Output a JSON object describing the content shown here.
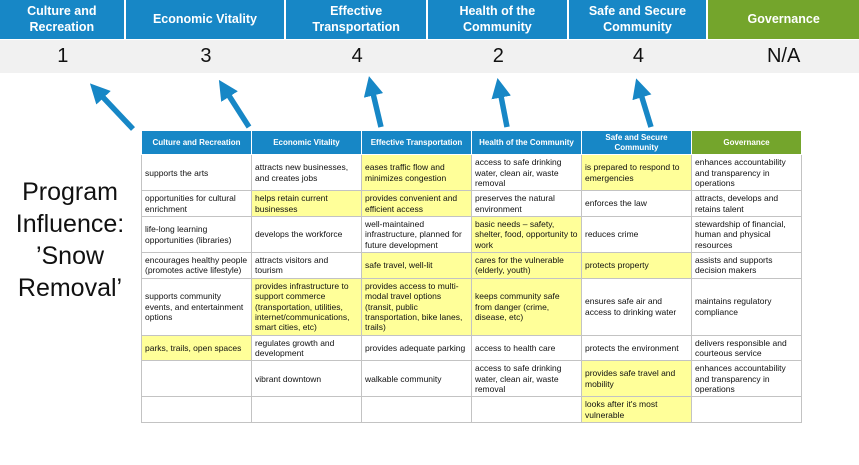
{
  "program_title": "Program Influence: ’Snow Removal’",
  "colors": {
    "header_blue": "#1787c6",
    "governance_green": "#74a52c",
    "highlight_yellow": "#ffff99",
    "score_band_bg": "#f1f1f1",
    "arrow_blue": "#1787c6"
  },
  "scoreboard": {
    "columns": [
      {
        "label": "Culture and Recreation",
        "score": "1"
      },
      {
        "label": "Economic Vitality",
        "score": "3"
      },
      {
        "label": "Effective Transportation",
        "score": "4"
      },
      {
        "label": "Health of the Community",
        "score": "2"
      },
      {
        "label": "Safe and Secure Community",
        "score": "4"
      },
      {
        "label": "Governance",
        "score": "N/A"
      }
    ]
  },
  "matrix": {
    "headers": [
      "Culture and Recreation",
      "Economic Vitality",
      "Effective Transportation",
      "Health of the Community",
      "Safe and Secure Community",
      "Governance"
    ],
    "rows": [
      [
        {
          "text": "supports the arts",
          "highlight": false
        },
        {
          "text": "attracts new businesses, and creates jobs",
          "highlight": false
        },
        {
          "text": "eases traffic flow and minimizes congestion",
          "highlight": true
        },
        {
          "text": "access to safe drinking water, clean air, waste removal",
          "highlight": false
        },
        {
          "text": "is prepared to respond to emergencies",
          "highlight": true
        },
        {
          "text": "enhances accountability and transparency in operations",
          "highlight": false
        }
      ],
      [
        {
          "text": "opportunities for cultural enrichment",
          "highlight": false
        },
        {
          "text": "helps retain current businesses",
          "highlight": true
        },
        {
          "text": "provides convenient and efficient access",
          "highlight": true
        },
        {
          "text": "preserves the natural environment",
          "highlight": false
        },
        {
          "text": "enforces the law",
          "highlight": false
        },
        {
          "text": "attracts, develops and retains talent",
          "highlight": false
        }
      ],
      [
        {
          "text": "life-long learning opportunities (libraries)",
          "highlight": false
        },
        {
          "text": "develops the workforce",
          "highlight": false
        },
        {
          "text": "well-maintained infrastructure, planned for future development",
          "highlight": false
        },
        {
          "text": "basic needs – safety, shelter, food, opportunity to work",
          "highlight": true
        },
        {
          "text": "reduces crime",
          "highlight": false
        },
        {
          "text": "stewardship of financial, human and physical resources",
          "highlight": false
        }
      ],
      [
        {
          "text": "encourages healthy people (promotes active lifestyle)",
          "highlight": false
        },
        {
          "text": "attracts visitors and tourism",
          "highlight": false
        },
        {
          "text": "safe travel, well-lit",
          "highlight": true
        },
        {
          "text": "cares for the vulnerable (elderly, youth)",
          "highlight": true
        },
        {
          "text": "protects property",
          "highlight": true
        },
        {
          "text": "assists and supports decision makers",
          "highlight": false
        }
      ],
      [
        {
          "text": "supports community events, and entertainment options",
          "highlight": false
        },
        {
          "text": "provides infrastructure to support commerce (transportation, utilities, internet/communications, smart cities, etc)",
          "highlight": true
        },
        {
          "text": "provides access to multi-modal travel options (transit, public transportation, bike lanes, trails)",
          "highlight": true
        },
        {
          "text": "keeps community safe from danger (crime, disease, etc)",
          "highlight": true
        },
        {
          "text": "ensures safe air and access to drinking water",
          "highlight": false
        },
        {
          "text": "maintains regulatory compliance",
          "highlight": false
        }
      ],
      [
        {
          "text": "parks, trails, open spaces",
          "highlight": true
        },
        {
          "text": "regulates growth and development",
          "highlight": false
        },
        {
          "text": "provides adequate parking",
          "highlight": false
        },
        {
          "text": "access to health care",
          "highlight": false
        },
        {
          "text": "protects the environment",
          "highlight": false
        },
        {
          "text": "delivers responsible and courteous service",
          "highlight": false
        }
      ],
      [
        {
          "text": "",
          "highlight": false
        },
        {
          "text": "vibrant downtown",
          "highlight": false
        },
        {
          "text": "walkable community",
          "highlight": false
        },
        {
          "text": "access to safe drinking water, clean air, waste removal",
          "highlight": false
        },
        {
          "text": "provides safe travel and mobility",
          "highlight": true
        },
        {
          "text": "enhances accountability and transparency in operations",
          "highlight": false
        }
      ],
      [
        {
          "text": "",
          "highlight": false
        },
        {
          "text": "",
          "highlight": false
        },
        {
          "text": "",
          "highlight": false
        },
        {
          "text": "",
          "highlight": false
        },
        {
          "text": "looks after it's most vulnerable",
          "highlight": true
        },
        {
          "text": "",
          "highlight": false
        }
      ]
    ]
  }
}
